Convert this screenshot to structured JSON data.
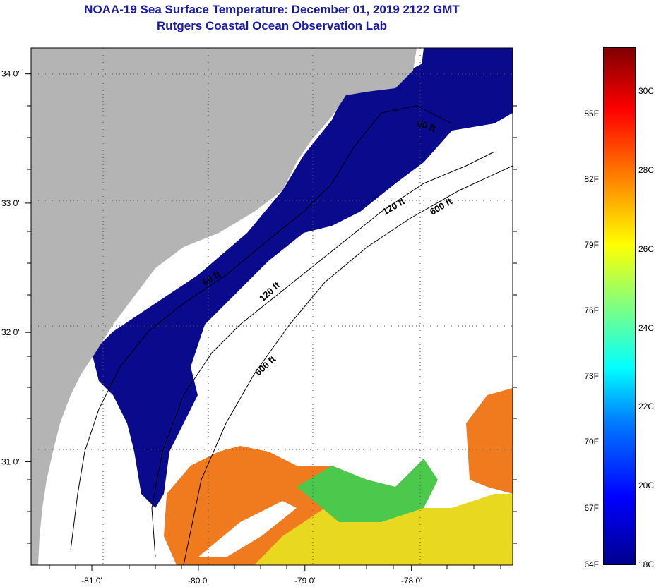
{
  "title_line1": "NOAA-19 Sea Surface Temperature:  December 01, 2019 2122 GMT",
  "title_line2": "Rutgers Coastal Ocean Observation Lab",
  "map": {
    "lon_min": -81.57,
    "lon_max": -77.05,
    "lat_min": 30.2,
    "lat_max": 34.2,
    "x_ticks": [
      {
        "value": -81,
        "label": "-81 0'"
      },
      {
        "value": -80,
        "label": "-80 0'"
      },
      {
        "value": -79,
        "label": "-79 0'"
      },
      {
        "value": -78,
        "label": "-78 0'"
      }
    ],
    "y_ticks": [
      {
        "value": 34,
        "label": "34 0'"
      },
      {
        "value": 33,
        "label": "33 0'"
      },
      {
        "value": 32,
        "label": "32 0'"
      },
      {
        "value": 31,
        "label": "31 0'"
      }
    ],
    "contour_labels": [
      "60 ft",
      "120 ft",
      "600 ft",
      "60 ft",
      "120 ft",
      "600 ft"
    ],
    "colors": {
      "land": "#b4b4b4",
      "no_data": "#ffffff",
      "cold": "#0a0a8c",
      "warm_orange": "#f07a1e",
      "warm_yellow": "#e8d820"
    }
  },
  "colorbar": {
    "min_c": 18,
    "max_c": 31.1,
    "fahrenheit_labels": [
      {
        "value": "85F",
        "c": 29.44
      },
      {
        "value": "82F",
        "c": 27.78
      },
      {
        "value": "79F",
        "c": 26.11
      },
      {
        "value": "76F",
        "c": 24.44
      },
      {
        "value": "73F",
        "c": 22.78
      },
      {
        "value": "70F",
        "c": 21.11
      },
      {
        "value": "67F",
        "c": 19.44
      },
      {
        "value": "64F",
        "c": 17.78
      }
    ],
    "celsius_labels": [
      {
        "value": "30C",
        "c": 30
      },
      {
        "value": "28C",
        "c": 28
      },
      {
        "value": "26C",
        "c": 26
      },
      {
        "value": "24C",
        "c": 24
      },
      {
        "value": "22C",
        "c": 22
      },
      {
        "value": "20C",
        "c": 20
      },
      {
        "value": "18C",
        "c": 18
      }
    ]
  }
}
